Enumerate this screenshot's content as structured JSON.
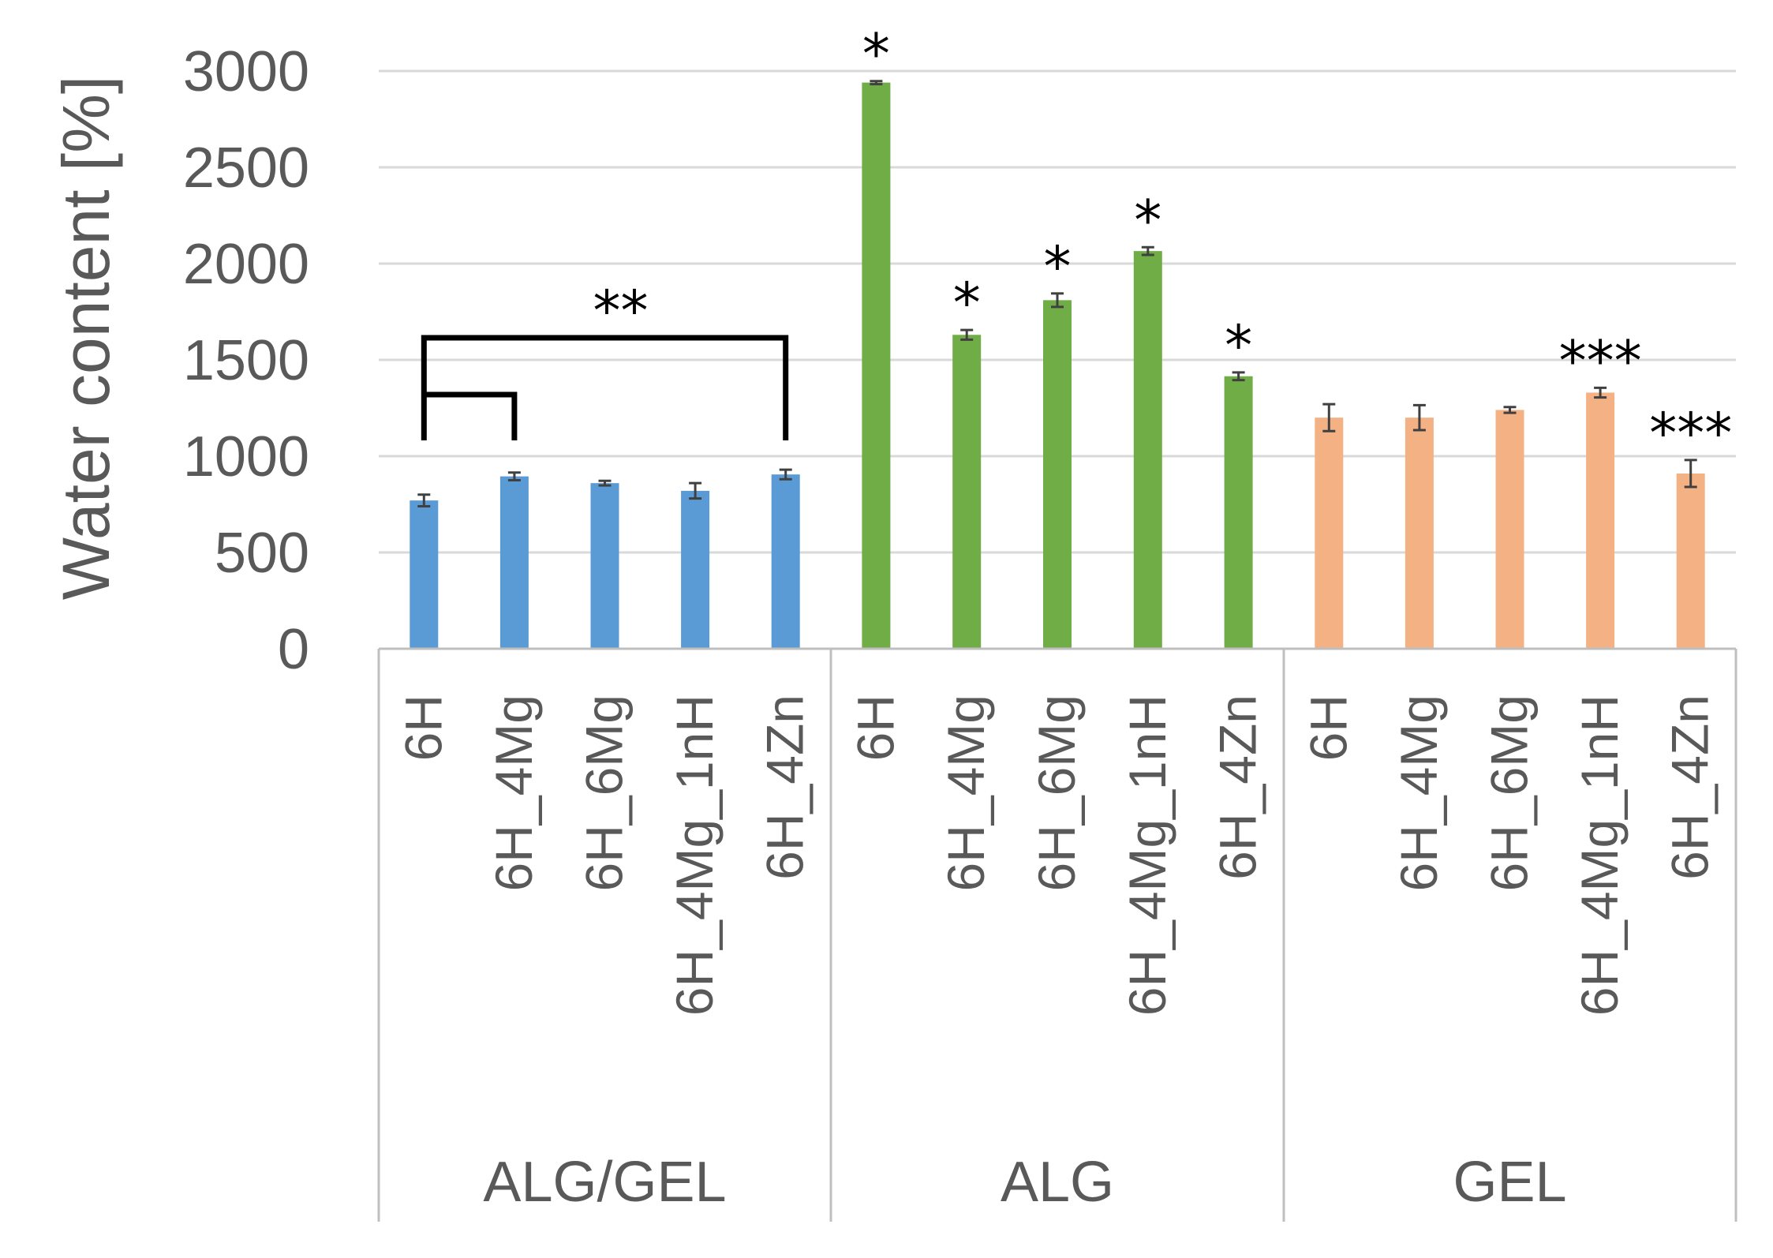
{
  "chart_data": {
    "type": "bar",
    "title": "",
    "xlabel": "",
    "ylabel": "Water content [%]",
    "ylim": [
      0,
      3000
    ],
    "yticks": [
      0,
      500,
      1000,
      1500,
      2000,
      2500,
      3000
    ],
    "grid": true,
    "groups": [
      {
        "name": "ALG/GEL",
        "color": "#5b9bd5",
        "categories": [
          "6H",
          "6H_4Mg",
          "6H_6Mg",
          "6H_4Mg_1nH",
          "6H_4Zn"
        ],
        "values": [
          770,
          895,
          860,
          820,
          905
        ],
        "errors": [
          30,
          20,
          12,
          40,
          25
        ],
        "markers": [
          "",
          "",
          "",
          "",
          ""
        ]
      },
      {
        "name": "ALG",
        "color": "#70ad47",
        "categories": [
          "6H",
          "6H_4Mg",
          "6H_6Mg",
          "6H_4Mg_1nH",
          "6H_4Zn"
        ],
        "values": [
          2940,
          1630,
          1810,
          2065,
          1415
        ],
        "errors": [
          8,
          25,
          35,
          20,
          20
        ],
        "markers": [
          "*",
          "*",
          "*",
          "*",
          "*"
        ]
      },
      {
        "name": "GEL",
        "color": "#f4b183",
        "categories": [
          "6H",
          "6H_4Mg",
          "6H_6Mg",
          "6H_4Mg_1nH",
          "6H_4Zn"
        ],
        "values": [
          1200,
          1200,
          1240,
          1330,
          910
        ],
        "errors": [
          70,
          65,
          15,
          25,
          70
        ],
        "markers": [
          "",
          "",
          "",
          "***",
          "***"
        ]
      }
    ],
    "annotations": [
      {
        "text": "**",
        "from_group": 0,
        "from_index": 0,
        "to_indices": [
          1,
          4
        ]
      }
    ]
  }
}
